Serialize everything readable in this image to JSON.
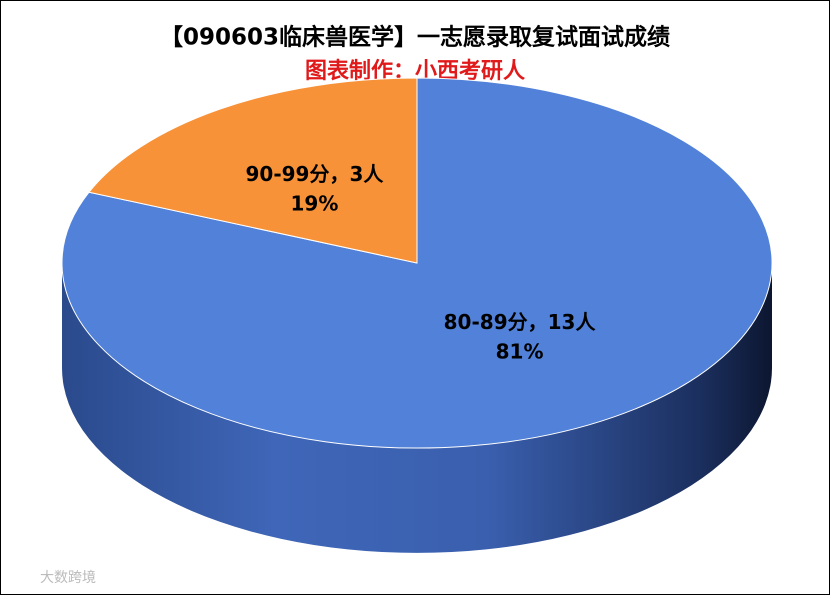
{
  "chart_data": {
    "type": "pie",
    "title": "【090603临床兽医学】一志愿录取复试面试成绩",
    "subtitle": "图表制作：小西考研人",
    "categories": [
      "80-89分",
      "90-99分"
    ],
    "label_separator": "，",
    "values": [
      13,
      3
    ],
    "value_labels": [
      "13人",
      "3人"
    ],
    "percents": [
      81,
      19
    ],
    "percent_labels": [
      "81%",
      "19%"
    ],
    "colors": [
      "#5181d8",
      "#f79239"
    ],
    "watermark": "大数跨境"
  }
}
